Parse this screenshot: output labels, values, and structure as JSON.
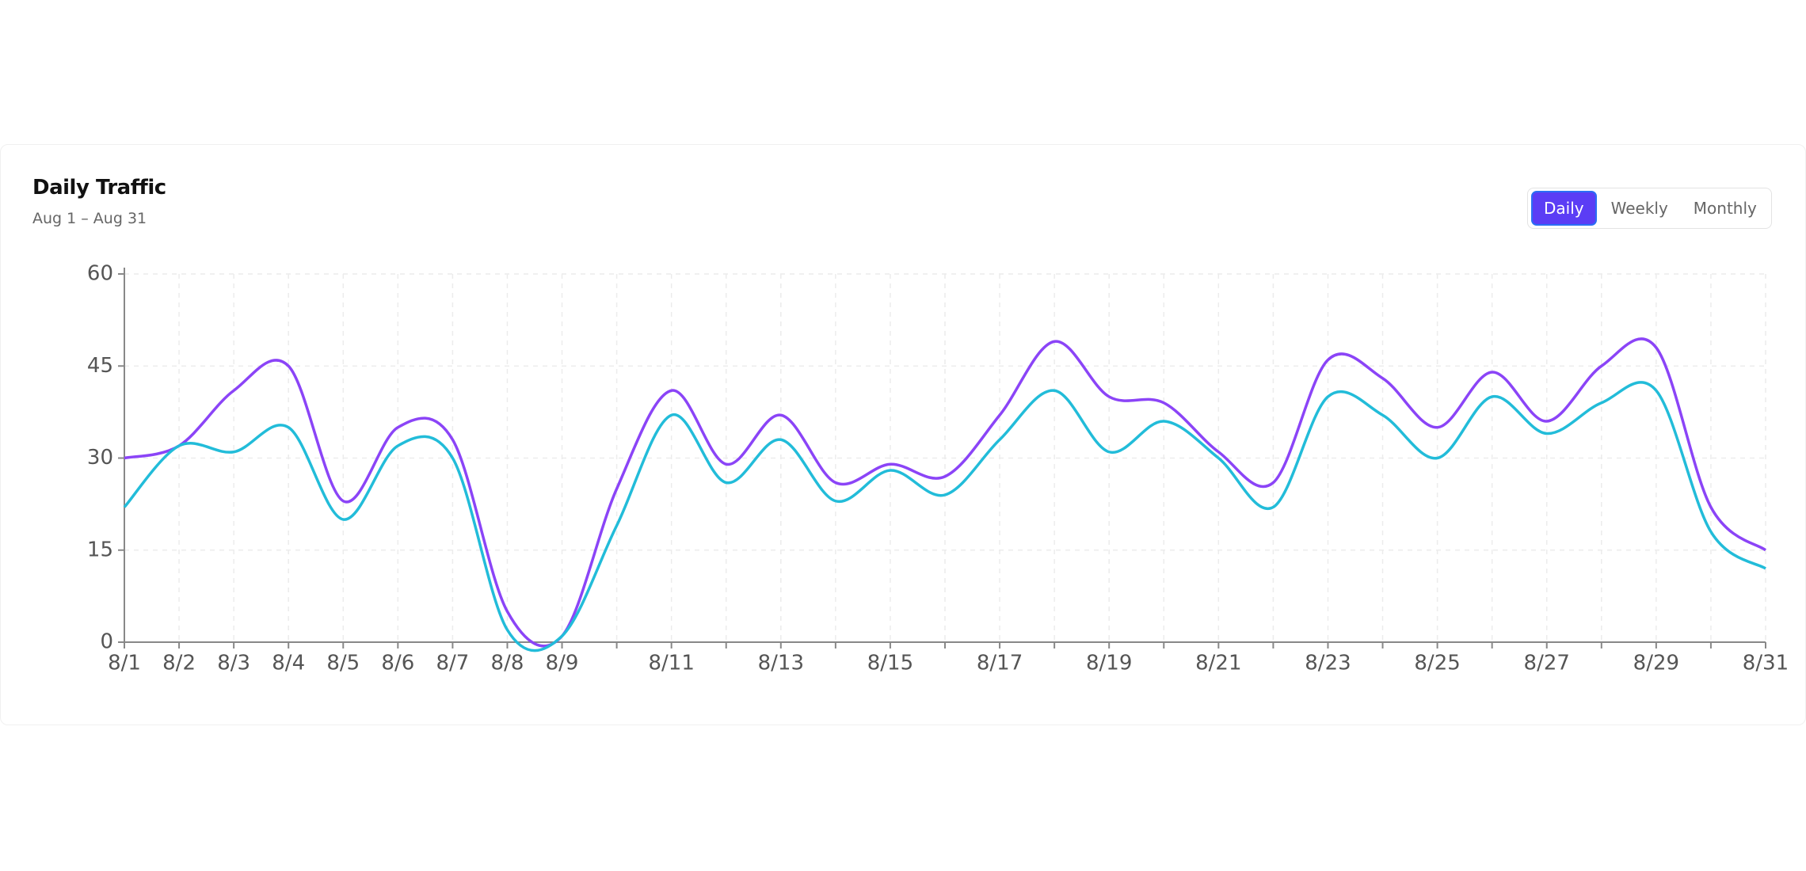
{
  "header": {
    "title": "Daily Traffic",
    "subtitle": "Aug 1 – Aug 31"
  },
  "controls": [
    "Daily",
    "Weekly",
    "Monthly"
  ],
  "chart_data": {
    "type": "line",
    "categories": [
      "8/1",
      "8/2",
      "8/3",
      "8/4",
      "8/5",
      "8/6",
      "8/7",
      "8/8",
      "8/9",
      null,
      "8/11",
      null,
      "8/13",
      null,
      "8/15",
      null,
      "8/17",
      null,
      "8/19",
      null,
      "8/21",
      null,
      "8/23",
      null,
      "8/25",
      null,
      "8/27",
      null,
      "8/29",
      null,
      "8/31"
    ],
    "series": [
      {
        "color": "#8b44f7",
        "values": [
          30,
          32,
          41,
          45,
          23,
          35,
          33,
          5,
          1,
          25,
          41,
          29,
          37,
          26,
          29,
          27,
          37,
          49,
          40,
          39,
          31,
          26,
          46,
          43,
          35,
          44,
          36,
          45,
          48,
          22,
          15
        ]
      },
      {
        "color": "#22bcd9",
        "values": [
          22,
          32,
          31,
          35,
          20,
          32,
          30,
          2,
          1,
          19,
          37,
          26,
          33,
          23,
          28,
          24,
          33,
          41,
          31,
          36,
          30,
          22,
          40,
          37,
          30,
          40,
          34,
          39,
          41,
          18,
          12
        ]
      }
    ],
    "ylim": [
      0,
      60
    ],
    "yticks": [
      0,
      15,
      30,
      45,
      60
    ],
    "grid": true
  }
}
